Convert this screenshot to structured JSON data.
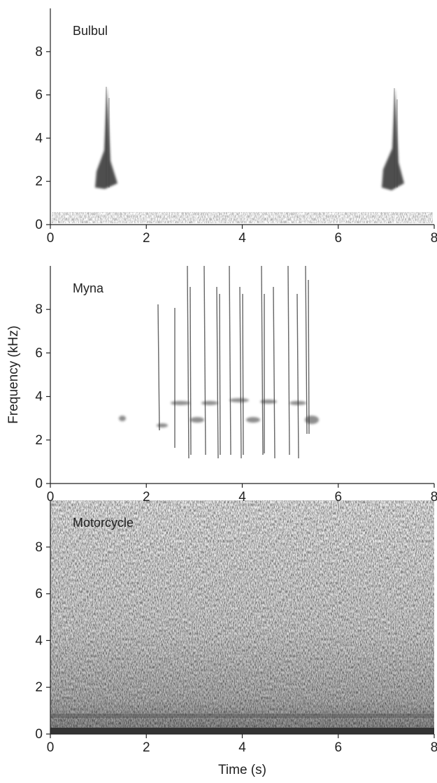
{
  "chart_data": [
    {
      "type": "spectrogram",
      "label": "Bulbul",
      "xlim": [
        0,
        8
      ],
      "ylim": [
        0,
        10
      ],
      "xticks": [
        0,
        2,
        4,
        6,
        8
      ],
      "yticks": [
        0,
        2,
        4,
        6,
        8
      ]
    },
    {
      "type": "spectrogram",
      "label": "Myna",
      "ylabel": "Frequency (kHz)",
      "xlim": [
        0,
        8
      ],
      "ylim": [
        0,
        10
      ],
      "xticks": [
        0,
        2,
        4,
        6,
        8
      ],
      "yticks": [
        0,
        2,
        4,
        6,
        8
      ]
    },
    {
      "type": "spectrogram",
      "label": "Motorcycle",
      "xlabel": "Time (s)",
      "xlim": [
        0,
        8
      ],
      "ylim": [
        0,
        10
      ],
      "xticks": [
        0,
        2,
        4,
        6,
        8
      ],
      "yticks": [
        0,
        2,
        4,
        6,
        8
      ]
    }
  ]
}
